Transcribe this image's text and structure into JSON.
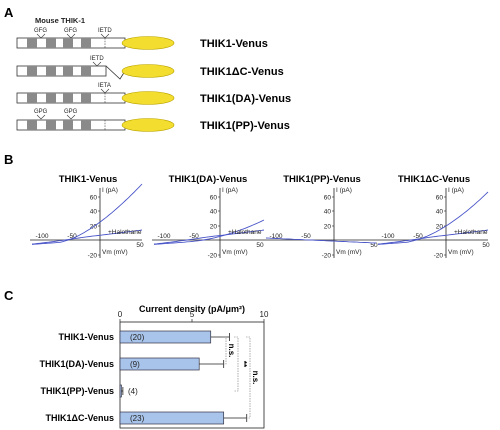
{
  "panels": {
    "a": "A",
    "b": "B",
    "c": "C"
  },
  "panel_a": {
    "header": "Mouse THIK-1",
    "motif_labels": [
      "GFG",
      "GFG",
      "IETD"
    ],
    "constructs": [
      {
        "name": "THIK1-Venus",
        "truncated": false,
        "motifs": [
          "GFG",
          "GFG",
          "IETD"
        ]
      },
      {
        "name": "THIK1ΔC-Venus",
        "truncated": true,
        "motifs": [
          "IETD"
        ]
      },
      {
        "name": "THIK1(DA)-Venus",
        "truncated": false,
        "motifs": [
          "IETA"
        ]
      },
      {
        "name": "THIK1(PP)-Venus",
        "truncated": false,
        "motifs": [
          "GPG",
          "GPG"
        ]
      }
    ],
    "colors": {
      "venus": "#f3dd2e",
      "segment": "#8a8a8a"
    }
  },
  "panel_b": {
    "ylabel": "I (pA)",
    "xlabel": "Vm (mV)",
    "annotation": "+Halothane",
    "plots": [
      {
        "title": "THIK1-Venus",
        "halothane": true
      },
      {
        "title": "THIK1(DA)-Venus",
        "halothane": true
      },
      {
        "title": "THIK1(PP)-Venus",
        "halothane": false
      },
      {
        "title": "THIK1ΔC-Venus",
        "halothane": true
      }
    ],
    "yticks": [
      60,
      40,
      20,
      -20
    ],
    "xticks": [
      -100,
      -50,
      50
    ],
    "trace_color": "#4a55c8"
  },
  "chart_data": {
    "type": "bar",
    "orientation": "horizontal",
    "title": "Current density (pA/μm²)",
    "categories": [
      "THIK1-Venus",
      "THIK1(DA)-Venus",
      "THIK1(PP)-Venus",
      "THIK1ΔC-Venus"
    ],
    "values": [
      6.3,
      5.5,
      0.1,
      7.2
    ],
    "errors": [
      1.3,
      1.7,
      0.1,
      1.6
    ],
    "n_labels": [
      "(20)",
      "(9)",
      "(4)",
      "(23)"
    ],
    "xticks": [
      0,
      5,
      10
    ],
    "xlim": [
      0,
      10
    ],
    "bar_color": "#a9c4ea",
    "significance": [
      {
        "from": 0,
        "to": 1,
        "label": "n.s."
      },
      {
        "from": 0,
        "to": 2,
        "label": "**"
      },
      {
        "from": 0,
        "to": 3,
        "label": "n.s."
      }
    ]
  }
}
